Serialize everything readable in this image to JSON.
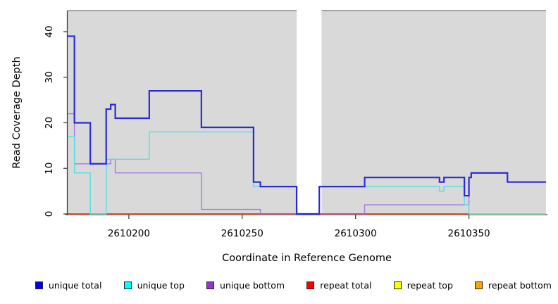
{
  "chart_data": {
    "type": "line",
    "subtype": "step",
    "title": "",
    "xlabel": "Coordinate in Reference Genome",
    "ylabel": "Read Coverage Depth",
    "xlim": [
      2610173,
      2610384
    ],
    "ylim": [
      0,
      44.63
    ],
    "x_ticks": [
      2610200,
      2610250,
      2610300,
      2610350
    ],
    "y_ticks": [
      0,
      10,
      20,
      30,
      40
    ],
    "grid": "off",
    "panel_bg": "#D9D9D9",
    "axis_color": "#333333",
    "top_border_color": "#8A8A8A",
    "gap_band": {
      "from": 2610274,
      "to": 2610285,
      "color": "#FFFFFF"
    },
    "series": [
      {
        "name": "unique total",
        "line_color": "#2B2BD5",
        "legend_color": "#0000EE",
        "width": 2.2,
        "start": 39,
        "steps": [
          [
            2610176,
            20
          ],
          [
            2610183,
            11
          ],
          [
            2610190,
            23
          ],
          [
            2610192,
            24
          ],
          [
            2610194,
            21
          ],
          [
            2610209,
            27
          ],
          [
            2610232,
            19
          ],
          [
            2610255,
            7
          ],
          [
            2610258,
            6
          ],
          [
            2610274,
            0
          ],
          [
            2610284,
            6
          ],
          [
            2610304,
            8
          ],
          [
            2610337,
            7
          ],
          [
            2610339,
            8
          ],
          [
            2610348,
            4
          ],
          [
            2610350,
            8
          ],
          [
            2610351,
            9
          ],
          [
            2610367,
            7
          ]
        ]
      },
      {
        "name": "unique top",
        "line_color": "#58DCE2",
        "legend_color": "#00FFFF",
        "width": 1.4,
        "start": 17,
        "steps": [
          [
            2610176,
            9
          ],
          [
            2610183,
            0
          ],
          [
            2610190,
            12
          ],
          [
            2610209,
            18
          ],
          [
            2610255,
            6
          ],
          [
            2610274,
            0
          ],
          [
            2610284,
            6
          ],
          [
            2610337,
            5
          ],
          [
            2610339,
            6
          ],
          [
            2610348,
            2
          ],
          [
            2610350,
            0
          ]
        ]
      },
      {
        "name": "unique bottom",
        "line_color": "#A878DC",
        "legend_color": "#9932CC",
        "width": 1.4,
        "start": 22,
        "steps": [
          [
            2610176,
            11
          ],
          [
            2610192,
            12
          ],
          [
            2610194,
            9
          ],
          [
            2610232,
            1
          ],
          [
            2610258,
            0
          ],
          [
            2610304,
            2
          ],
          [
            2610350,
            8
          ],
          [
            2610351,
            9
          ],
          [
            2610367,
            7
          ]
        ]
      },
      {
        "name": "repeat total",
        "line_color": "#CC3344",
        "legend_color": "#FF0000",
        "width": 1.4,
        "start": 0,
        "steps": []
      },
      {
        "name": "repeat top",
        "line_color": "#FFFF00",
        "legend_color": "#FFFF00",
        "width": 1.4,
        "start": 0,
        "steps": []
      },
      {
        "name": "repeat bottom",
        "line_color": "#FFA500",
        "legend_color": "#FFA500",
        "width": 2.0,
        "start": 0,
        "steps": []
      }
    ],
    "zero_line_tints": [
      {
        "from": 2610258,
        "to": 2610304,
        "color": "#C85A78"
      },
      {
        "from": 2610350,
        "to": 2610384,
        "color": "#8FD6A8"
      }
    ],
    "legend_position": "bottom"
  }
}
